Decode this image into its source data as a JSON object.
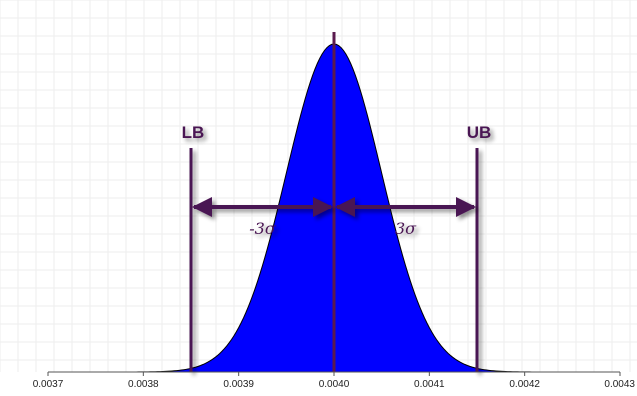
{
  "chart_data": {
    "type": "area",
    "distribution": "normal",
    "mean": 0.004,
    "sigma": 5e-05,
    "xlim": [
      0.0037,
      0.0043
    ],
    "x_ticks": [
      "0.0037",
      "0.0038",
      "0.0039",
      "0.0040",
      "0.0041",
      "0.0042",
      "0.0043"
    ],
    "fill_color": "#0000ff",
    "line_color": "#5a1a4e",
    "grid": true,
    "markers": [
      {
        "label": "LB",
        "x": 0.00385
      },
      {
        "label": "UB",
        "x": 0.00415
      }
    ],
    "mean_line": {
      "x": 0.004
    },
    "annotations": [
      {
        "label": "-3σ",
        "from": 0.00385,
        "to": 0.004
      },
      {
        "label": "3σ",
        "from": 0.004,
        "to": 0.00415
      }
    ]
  }
}
